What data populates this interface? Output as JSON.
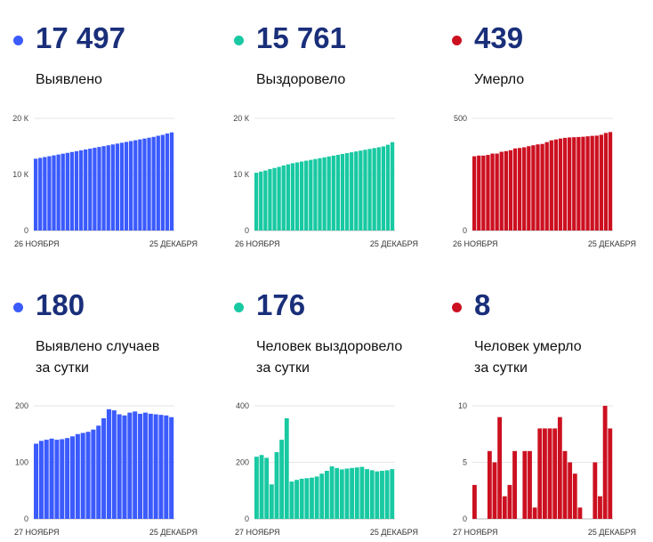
{
  "panels": [
    {
      "value": "17 497",
      "label_lines": [
        "Выявлено"
      ],
      "color": "#3b5bfd",
      "chart_data": {
        "type": "bar",
        "x_start_label": "26 НОЯБРЯ",
        "x_end_label": "25 ДЕКАБРЯ",
        "y_ticks": [
          {
            "v": 0,
            "t": "0"
          },
          {
            "v": 10000,
            "t": "10 К"
          },
          {
            "v": 20000,
            "t": "20 К"
          }
        ],
        "ylim": [
          0,
          20000
        ],
        "values": [
          12800,
          12950,
          13100,
          13250,
          13400,
          13550,
          13700,
          13850,
          14000,
          14150,
          14300,
          14450,
          14600,
          14750,
          14900,
          15050,
          15200,
          15350,
          15500,
          15650,
          15800,
          15950,
          16100,
          16250,
          16400,
          16550,
          16700,
          16900,
          17050,
          17300,
          17497
        ]
      }
    },
    {
      "value": "15 761",
      "label_lines": [
        "Выздоровело"
      ],
      "color": "#18c9a2",
      "chart_data": {
        "type": "bar",
        "x_start_label": "26 НОЯБРЯ",
        "x_end_label": "25 ДЕКАБРЯ",
        "y_ticks": [
          {
            "v": 0,
            "t": "0"
          },
          {
            "v": 10000,
            "t": "10 К"
          },
          {
            "v": 20000,
            "t": "20 К"
          }
        ],
        "ylim": [
          0,
          20000
        ],
        "values": [
          10300,
          10500,
          10700,
          10950,
          11150,
          11350,
          11600,
          11800,
          12000,
          12150,
          12300,
          12450,
          12600,
          12750,
          12900,
          13050,
          13200,
          13350,
          13500,
          13650,
          13800,
          13950,
          14100,
          14250,
          14400,
          14550,
          14700,
          14850,
          15000,
          15300,
          15761
        ]
      }
    },
    {
      "value": "439",
      "label_lines": [
        "Умерло"
      ],
      "color": "#cc1020",
      "chart_data": {
        "type": "bar",
        "x_start_label": "26 НОЯБРЯ",
        "x_end_label": "25 ДЕКАБРЯ",
        "y_ticks": [
          {
            "v": 0,
            "t": "0"
          },
          {
            "v": 500,
            "t": "500"
          }
        ],
        "ylim": [
          0,
          500
        ],
        "values": [
          331,
          334,
          334,
          337,
          343,
          343,
          351,
          354,
          358,
          366,
          368,
          371,
          376,
          380,
          384,
          386,
          394,
          402,
          406,
          410,
          413,
          415,
          416,
          417,
          418,
          420,
          422,
          423,
          427,
          435,
          439
        ]
      }
    },
    {
      "value": "180",
      "label_lines": [
        "Выявлено случаев",
        "за сутки"
      ],
      "color": "#3b5bfd",
      "chart_data": {
        "type": "bar",
        "x_start_label": "27 НОЯБРЯ",
        "x_end_label": "25 ДЕКАБРЯ",
        "y_ticks": [
          {
            "v": 0,
            "t": "0"
          },
          {
            "v": 100,
            "t": "100"
          },
          {
            "v": 200,
            "t": "200"
          }
        ],
        "ylim": [
          0,
          200
        ],
        "values": [
          133,
          138,
          140,
          142,
          140,
          141,
          143,
          146,
          150,
          152,
          154,
          158,
          165,
          178,
          194,
          192,
          185,
          183,
          188,
          190,
          186,
          188,
          186,
          185,
          184,
          183,
          180
        ]
      }
    },
    {
      "value": "176",
      "label_lines": [
        "Человек выздоровело",
        "за сутки"
      ],
      "color": "#18c9a2",
      "chart_data": {
        "type": "bar",
        "x_start_label": "27 НОЯБРЯ",
        "x_end_label": "25 ДЕКАБРЯ",
        "y_ticks": [
          {
            "v": 0,
            "t": "0"
          },
          {
            "v": 200,
            "t": "200"
          },
          {
            "v": 400,
            "t": "400"
          }
        ],
        "ylim": [
          0,
          400
        ],
        "values": [
          220,
          226,
          216,
          122,
          236,
          280,
          356,
          132,
          138,
          142,
          144,
          146,
          150,
          160,
          170,
          186,
          180,
          175,
          178,
          180,
          182,
          184,
          176,
          172,
          168,
          170,
          172,
          176
        ]
      }
    },
    {
      "value": "8",
      "label_lines": [
        "Человек умерло",
        "за сутки"
      ],
      "color": "#cc1020",
      "chart_data": {
        "type": "bar",
        "x_start_label": "27 НОЯБРЯ",
        "x_end_label": "25 ДЕКАБРЯ",
        "y_ticks": [
          {
            "v": 0,
            "t": "0"
          },
          {
            "v": 5,
            "t": "5"
          },
          {
            "v": 10,
            "t": "10"
          }
        ],
        "ylim": [
          0,
          10
        ],
        "values": [
          3,
          0,
          0,
          6,
          5,
          9,
          2,
          3,
          6,
          0,
          6,
          6,
          1,
          8,
          8,
          8,
          8,
          9,
          6,
          5,
          4,
          1,
          0,
          0,
          5,
          2,
          10,
          8
        ]
      }
    }
  ]
}
